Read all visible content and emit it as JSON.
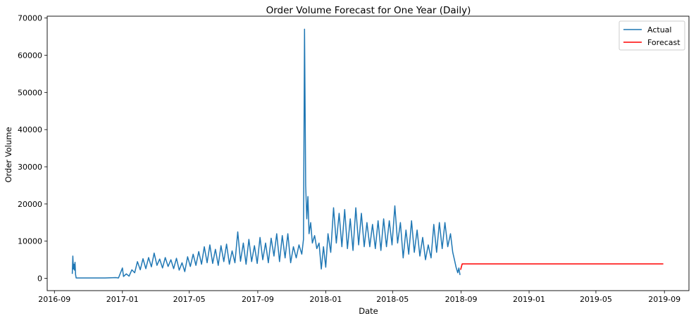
{
  "chart_data": {
    "type": "line",
    "title": "Order Volume Forecast for One Year (Daily)",
    "xlabel": "Date",
    "ylabel": "Order Volume",
    "x_type": "date",
    "xlim": [
      "2016-08-19",
      "2019-10-15"
    ],
    "ylim": [
      -3300,
      70500
    ],
    "x_ticks": [
      "2016-09-01",
      "2017-01-01",
      "2017-05-01",
      "2017-09-01",
      "2018-01-01",
      "2018-05-01",
      "2018-09-01",
      "2019-01-01",
      "2019-05-01",
      "2019-09-01"
    ],
    "x_tick_labels": [
      "2016-09",
      "2017-01",
      "2017-05",
      "2017-09",
      "2018-01",
      "2018-05",
      "2018-09",
      "2019-01",
      "2019-05",
      "2019-09"
    ],
    "y_ticks": [
      0,
      10000,
      20000,
      30000,
      40000,
      50000,
      60000,
      70000
    ],
    "y_tick_labels": [
      "0",
      "10000",
      "20000",
      "30000",
      "40000",
      "50000",
      "60000",
      "70000"
    ],
    "grid": false,
    "legend_position": "top-right",
    "series": [
      {
        "name": "Actual",
        "color": "#1f77b4",
        "points": [
          [
            "2016-10-03",
            1200
          ],
          [
            "2016-10-04",
            6000
          ],
          [
            "2016-10-05",
            2500
          ],
          [
            "2016-10-06",
            3800
          ],
          [
            "2016-10-07",
            2200
          ],
          [
            "2016-10-08",
            4300
          ],
          [
            "2016-10-09",
            1000
          ],
          [
            "2016-10-10",
            100
          ],
          [
            "2016-11-01",
            100
          ],
          [
            "2016-12-01",
            100
          ],
          [
            "2016-12-20",
            200
          ],
          [
            "2016-12-25",
            100
          ],
          [
            "2017-01-01",
            2800
          ],
          [
            "2017-01-03",
            500
          ],
          [
            "2017-01-08",
            1200
          ],
          [
            "2017-01-13",
            600
          ],
          [
            "2017-01-18",
            2300
          ],
          [
            "2017-01-23",
            1500
          ],
          [
            "2017-01-28",
            4500
          ],
          [
            "2017-02-02",
            2300
          ],
          [
            "2017-02-07",
            5300
          ],
          [
            "2017-02-12",
            2600
          ],
          [
            "2017-02-17",
            5600
          ],
          [
            "2017-02-22",
            3100
          ],
          [
            "2017-02-27",
            6800
          ],
          [
            "2017-03-04",
            3500
          ],
          [
            "2017-03-09",
            5200
          ],
          [
            "2017-03-14",
            2800
          ],
          [
            "2017-03-19",
            5600
          ],
          [
            "2017-03-24",
            3200
          ],
          [
            "2017-03-29",
            5000
          ],
          [
            "2017-04-03",
            2600
          ],
          [
            "2017-04-08",
            5400
          ],
          [
            "2017-04-13",
            2200
          ],
          [
            "2017-04-18",
            4200
          ],
          [
            "2017-04-23",
            1800
          ],
          [
            "2017-04-28",
            5800
          ],
          [
            "2017-05-03",
            3200
          ],
          [
            "2017-05-08",
            6500
          ],
          [
            "2017-05-13",
            3500
          ],
          [
            "2017-05-18",
            7200
          ],
          [
            "2017-05-23",
            3800
          ],
          [
            "2017-05-28",
            8500
          ],
          [
            "2017-06-02",
            4200
          ],
          [
            "2017-06-07",
            9000
          ],
          [
            "2017-06-12",
            4000
          ],
          [
            "2017-06-17",
            7800
          ],
          [
            "2017-06-22",
            3500
          ],
          [
            "2017-06-27",
            8800
          ],
          [
            "2017-07-02",
            4500
          ],
          [
            "2017-07-07",
            9200
          ],
          [
            "2017-07-12",
            3800
          ],
          [
            "2017-07-17",
            7400
          ],
          [
            "2017-07-22",
            4200
          ],
          [
            "2017-07-27",
            12500
          ],
          [
            "2017-08-01",
            4600
          ],
          [
            "2017-08-06",
            9500
          ],
          [
            "2017-08-11",
            3800
          ],
          [
            "2017-08-16",
            10500
          ],
          [
            "2017-08-21",
            4500
          ],
          [
            "2017-08-26",
            8800
          ],
          [
            "2017-08-31",
            4000
          ],
          [
            "2017-09-05",
            11000
          ],
          [
            "2017-09-10",
            5000
          ],
          [
            "2017-09-15",
            9500
          ],
          [
            "2017-09-20",
            4200
          ],
          [
            "2017-09-25",
            10800
          ],
          [
            "2017-09-30",
            6000
          ],
          [
            "2017-10-05",
            12000
          ],
          [
            "2017-10-10",
            4500
          ],
          [
            "2017-10-15",
            11500
          ],
          [
            "2017-10-20",
            5500
          ],
          [
            "2017-10-25",
            12000
          ],
          [
            "2017-10-30",
            4200
          ],
          [
            "2017-11-04",
            8500
          ],
          [
            "2017-11-09",
            5500
          ],
          [
            "2017-11-14",
            9000
          ],
          [
            "2017-11-19",
            6500
          ],
          [
            "2017-11-22",
            10500
          ],
          [
            "2017-11-24",
            67000
          ],
          [
            "2017-11-26",
            25000
          ],
          [
            "2017-11-28",
            16000
          ],
          [
            "2017-11-30",
            22000
          ],
          [
            "2017-12-02",
            12000
          ],
          [
            "2017-12-05",
            15000
          ],
          [
            "2017-12-08",
            9500
          ],
          [
            "2017-12-12",
            11500
          ],
          [
            "2017-12-16",
            8000
          ],
          [
            "2017-12-20",
            9500
          ],
          [
            "2017-12-24",
            2500
          ],
          [
            "2017-12-28",
            8500
          ],
          [
            "2018-01-01",
            3000
          ],
          [
            "2018-01-05",
            12000
          ],
          [
            "2018-01-10",
            7000
          ],
          [
            "2018-01-15",
            19000
          ],
          [
            "2018-01-20",
            9500
          ],
          [
            "2018-01-25",
            17500
          ],
          [
            "2018-01-30",
            8500
          ],
          [
            "2018-02-04",
            18500
          ],
          [
            "2018-02-09",
            8000
          ],
          [
            "2018-02-14",
            16000
          ],
          [
            "2018-02-19",
            7500
          ],
          [
            "2018-02-24",
            19000
          ],
          [
            "2018-03-01",
            9000
          ],
          [
            "2018-03-06",
            17500
          ],
          [
            "2018-03-11",
            8500
          ],
          [
            "2018-03-16",
            15000
          ],
          [
            "2018-03-21",
            8500
          ],
          [
            "2018-03-26",
            14500
          ],
          [
            "2018-03-31",
            8000
          ],
          [
            "2018-04-05",
            15500
          ],
          [
            "2018-04-10",
            7500
          ],
          [
            "2018-04-15",
            16000
          ],
          [
            "2018-04-20",
            8500
          ],
          [
            "2018-04-25",
            15500
          ],
          [
            "2018-04-30",
            9000
          ],
          [
            "2018-05-05",
            19500
          ],
          [
            "2018-05-10",
            9500
          ],
          [
            "2018-05-15",
            15000
          ],
          [
            "2018-05-20",
            5500
          ],
          [
            "2018-05-25",
            13000
          ],
          [
            "2018-05-30",
            6500
          ],
          [
            "2018-06-04",
            15500
          ],
          [
            "2018-06-09",
            7000
          ],
          [
            "2018-06-14",
            13000
          ],
          [
            "2018-06-19",
            6000
          ],
          [
            "2018-06-24",
            11000
          ],
          [
            "2018-06-29",
            5000
          ],
          [
            "2018-07-04",
            9000
          ],
          [
            "2018-07-09",
            5500
          ],
          [
            "2018-07-14",
            14500
          ],
          [
            "2018-07-19",
            7000
          ],
          [
            "2018-07-24",
            15000
          ],
          [
            "2018-07-29",
            8000
          ],
          [
            "2018-08-03",
            15000
          ],
          [
            "2018-08-08",
            8500
          ],
          [
            "2018-08-13",
            12000
          ],
          [
            "2018-08-17",
            7000
          ],
          [
            "2018-08-20",
            5000
          ],
          [
            "2018-08-23",
            3000
          ],
          [
            "2018-08-26",
            1500
          ],
          [
            "2018-08-28",
            2800
          ],
          [
            "2018-08-30",
            900
          ]
        ]
      },
      {
        "name": "Forecast",
        "color": "#ff0000",
        "points": [
          [
            "2018-08-31",
            2300
          ],
          [
            "2018-09-03",
            3900
          ],
          [
            "2018-12-01",
            3900
          ],
          [
            "2019-03-01",
            3900
          ],
          [
            "2019-06-01",
            3900
          ],
          [
            "2019-08-30",
            3900
          ]
        ]
      }
    ]
  }
}
